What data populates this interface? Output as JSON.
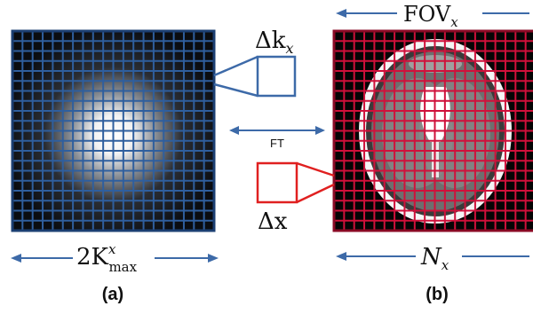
{
  "panel_a": {
    "caption": "(a)",
    "bottom_label_base": "2K",
    "bottom_label_sup": "x",
    "bottom_label_sub": "max",
    "zoom_label_base": "Δk",
    "zoom_label_sub": "x",
    "grid_color": "#2f5f9e"
  },
  "panel_b": {
    "caption": "(b)",
    "top_label_base": "FOV",
    "top_label_sub": "x",
    "bottom_label_base": "N",
    "bottom_label_sub": "x",
    "zoom_label": "Δx",
    "grid_color": "#d0103a"
  },
  "center": {
    "label": "FT",
    "arrow_color": "#3d6aa8"
  }
}
